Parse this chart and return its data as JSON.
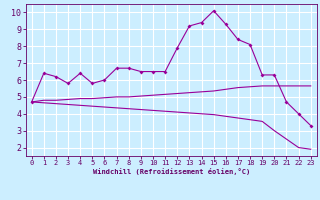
{
  "xlabel": "Windchill (Refroidissement éolien,°C)",
  "bg_color": "#cceeff",
  "grid_color": "#ffffff",
  "line_color": "#990099",
  "spine_color": "#660066",
  "x_ticks": [
    0,
    1,
    2,
    3,
    4,
    5,
    6,
    7,
    8,
    9,
    10,
    11,
    12,
    13,
    14,
    15,
    16,
    17,
    18,
    19,
    20,
    21,
    22,
    23
  ],
  "y_ticks": [
    2,
    3,
    4,
    5,
    6,
    7,
    8,
    9,
    10
  ],
  "ylim": [
    1.5,
    10.5
  ],
  "xlim": [
    -0.5,
    23.5
  ],
  "series1_x": [
    0,
    1,
    2,
    3,
    4,
    5,
    6,
    7,
    8,
    9,
    10,
    11,
    12,
    13,
    14,
    15,
    16,
    17,
    18,
    19,
    20,
    21,
    22,
    23
  ],
  "series1_y": [
    4.7,
    6.4,
    6.2,
    5.8,
    6.4,
    5.8,
    6.0,
    6.7,
    6.7,
    6.5,
    6.5,
    6.5,
    7.9,
    9.2,
    9.4,
    10.1,
    9.3,
    8.4,
    8.1,
    6.3,
    6.3,
    4.7,
    4.0,
    3.3
  ],
  "series2_x": [
    0,
    1,
    2,
    3,
    4,
    5,
    6,
    7,
    8,
    9,
    10,
    11,
    12,
    13,
    14,
    15,
    16,
    17,
    18,
    19,
    20,
    21,
    22,
    23
  ],
  "series2_y": [
    4.7,
    4.8,
    4.8,
    4.85,
    4.9,
    4.9,
    4.95,
    5.0,
    5.0,
    5.05,
    5.1,
    5.15,
    5.2,
    5.25,
    5.3,
    5.35,
    5.45,
    5.55,
    5.6,
    5.65,
    5.65,
    5.65,
    5.65,
    5.65
  ],
  "series3_x": [
    0,
    1,
    2,
    3,
    4,
    5,
    6,
    7,
    8,
    9,
    10,
    11,
    12,
    13,
    14,
    15,
    16,
    17,
    18,
    19,
    20,
    21,
    22,
    23
  ],
  "series3_y": [
    4.7,
    4.65,
    4.6,
    4.55,
    4.5,
    4.45,
    4.4,
    4.35,
    4.3,
    4.25,
    4.2,
    4.15,
    4.1,
    4.05,
    4.0,
    3.95,
    3.85,
    3.75,
    3.65,
    3.55,
    3.0,
    2.5,
    2.0,
    1.9
  ],
  "tick_fontsize": 5,
  "xlabel_fontsize": 5,
  "marker_size": 2.0
}
